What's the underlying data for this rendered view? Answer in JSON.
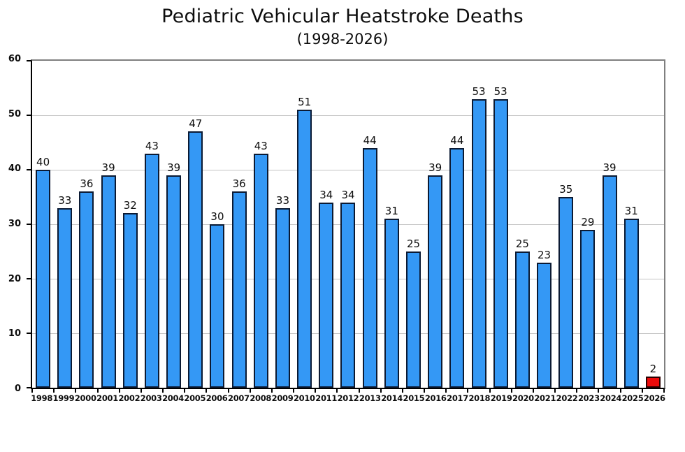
{
  "chart_data": {
    "type": "bar",
    "title": "Pediatric Vehicular Heatstroke Deaths",
    "subtitle": "(1998-2026)",
    "xlabel": "",
    "ylabel": "",
    "categories": [
      "1998",
      "1999",
      "2000",
      "2001",
      "2002",
      "2003",
      "2004",
      "2005",
      "2006",
      "2007",
      "2008",
      "2009",
      "2010",
      "2011",
      "2012",
      "2013",
      "2014",
      "2015",
      "2016",
      "2017",
      "2018",
      "2019",
      "2020",
      "2021",
      "2022",
      "2023",
      "2024",
      "2025",
      "2026"
    ],
    "values": [
      40,
      33,
      36,
      39,
      32,
      43,
      39,
      47,
      30,
      36,
      43,
      33,
      51,
      34,
      34,
      44,
      31,
      25,
      39,
      44,
      53,
      53,
      25,
      23,
      35,
      29,
      39,
      31,
      2
    ],
    "ylim": [
      0,
      60
    ],
    "yticks": [
      0,
      10,
      20,
      30,
      40,
      50,
      60
    ],
    "grid": true,
    "legend": "none",
    "data_labels": true,
    "default_bar_color": "#3498f5",
    "bar_border_color": "#0b1a33",
    "gridline_color": "#c3c3c3",
    "plot_border_color": "#7f7f7f",
    "axis_color": "#000000",
    "highlight": {
      "index": 28,
      "category": "2026",
      "color": "#ee0b0b",
      "border_color": "#2b0000"
    }
  }
}
